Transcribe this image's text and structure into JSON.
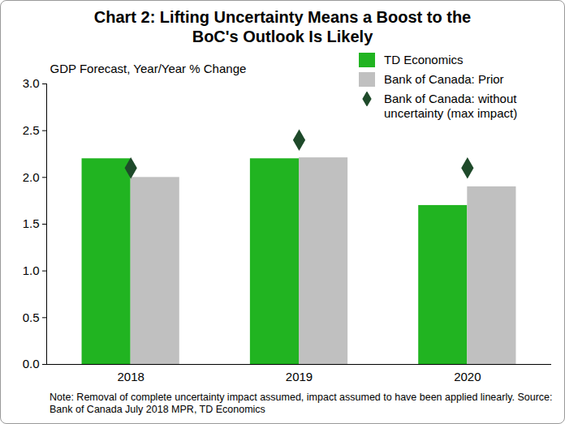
{
  "chart_data": {
    "type": "bar",
    "title": "Chart 2: Lifting Uncertainty Means a Boost to the BoC's Outlook Is Likely",
    "ylabel": "GDP Forecast, Year/Year % Change",
    "note": "Note: Removal of complete uncertainty impact assumed, impact assumed to have been applied linearly. Source: Bank of Canada July 2018 MPR, TD Economics",
    "categories": [
      "2018",
      "2019",
      "2020"
    ],
    "series": [
      {
        "name": "TD Economics",
        "type": "bar",
        "color": "#21b421",
        "values": [
          2.2,
          2.2,
          1.7
        ]
      },
      {
        "name": "Bank of Canada: Prior",
        "type": "bar",
        "color": "#c0c0c0",
        "values": [
          2.0,
          2.21,
          1.9
        ]
      },
      {
        "name": "Bank of Canada: without uncertainty (max impact)",
        "type": "scatter",
        "marker": "diamond",
        "color": "#1e4a2a",
        "values": [
          2.1,
          2.4,
          2.1
        ]
      }
    ],
    "ylim": [
      0,
      3
    ],
    "yticks": [
      {
        "value": 0,
        "label": "0.0"
      },
      0.5,
      {
        "value": 1,
        "label": "1.0"
      },
      1.5,
      {
        "value": 2,
        "label": "2.0"
      },
      2.5,
      {
        "value": 3,
        "label": "3.0"
      }
    ],
    "grid": false,
    "legend": "top-right"
  }
}
